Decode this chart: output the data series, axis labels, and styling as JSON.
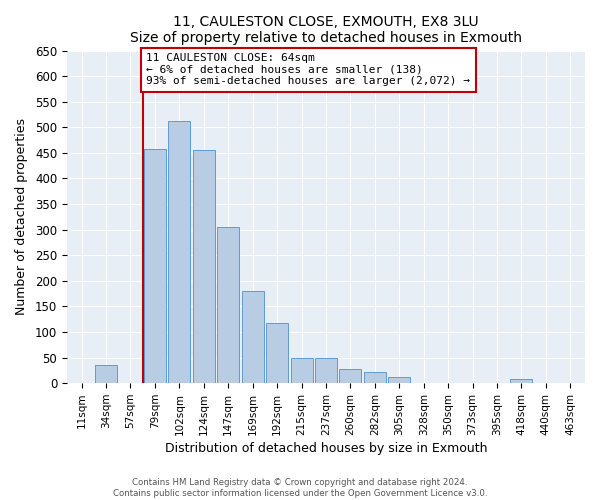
{
  "title": "11, CAULESTON CLOSE, EXMOUTH, EX8 3LU",
  "subtitle": "Size of property relative to detached houses in Exmouth",
  "xlabel": "Distribution of detached houses by size in Exmouth",
  "ylabel": "Number of detached properties",
  "bar_labels": [
    "11sqm",
    "34sqm",
    "57sqm",
    "79sqm",
    "102sqm",
    "124sqm",
    "147sqm",
    "169sqm",
    "192sqm",
    "215sqm",
    "237sqm",
    "260sqm",
    "282sqm",
    "305sqm",
    "328sqm",
    "350sqm",
    "373sqm",
    "395sqm",
    "418sqm",
    "440sqm",
    "463sqm"
  ],
  "bar_heights": [
    0,
    35,
    0,
    458,
    513,
    456,
    305,
    180,
    117,
    50,
    50,
    28,
    21,
    13,
    0,
    0,
    0,
    0,
    8,
    0,
    0
  ],
  "bar_color": "#b8cce4",
  "bar_edge_color": "#5b9bd5",
  "vline_color": "#c00000",
  "annotation_line1": "11 CAULESTON CLOSE: 64sqm",
  "annotation_line2": "← 6% of detached houses are smaller (138)",
  "annotation_line3": "93% of semi-detached houses are larger (2,072) →",
  "annotation_box_edge_color": "#c00000",
  "ylim": [
    0,
    650
  ],
  "yticks": [
    0,
    50,
    100,
    150,
    200,
    250,
    300,
    350,
    400,
    450,
    500,
    550,
    600,
    650
  ],
  "footer_line1": "Contains HM Land Registry data © Crown copyright and database right 2024.",
  "footer_line2": "Contains public sector information licensed under the Open Government Licence v3.0.",
  "plot_bg_color": "#e8eef6",
  "fig_bg_color": "#ffffff",
  "grid_color": "#ffffff",
  "vline_x_index": 2.5
}
